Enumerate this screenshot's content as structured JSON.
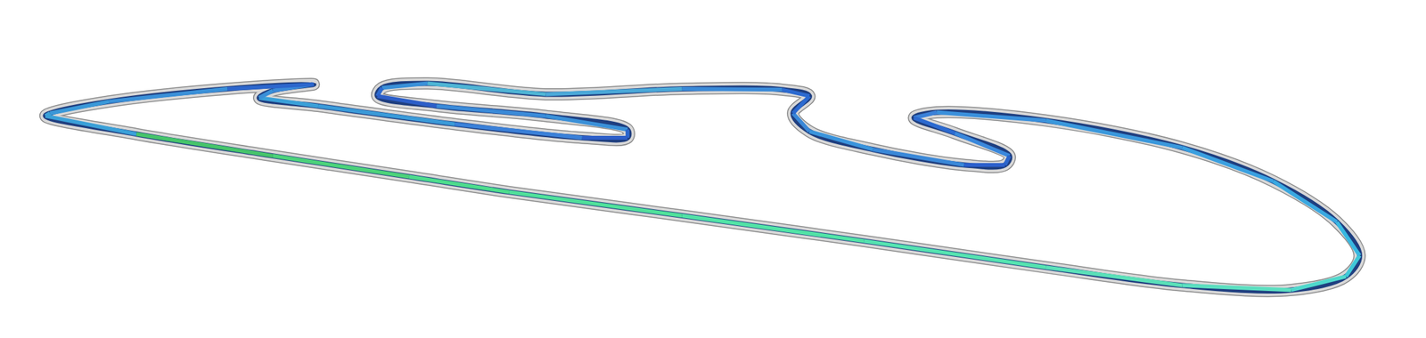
{
  "chart_data": {
    "type": "line",
    "x": [
      50,
      150,
      300,
      450,
      560,
      750,
      950,
      1150,
      1300,
      1420,
      1480,
      1495,
      1470,
      1400,
      1300,
      1150,
      1030,
      1005,
      1050,
      1110,
      1105,
      1060,
      960,
      890,
      872,
      890,
      860,
      750,
      600,
      470,
      420,
      415,
      480,
      600,
      690,
      690,
      640,
      500,
      350,
      285,
      300,
      345,
      250,
      120,
      55
    ],
    "y": [
      128,
      148,
      172,
      195,
      212,
      238,
      266,
      295,
      315,
      320,
      305,
      282,
      245,
      200,
      163,
      133,
      124,
      130,
      147,
      172,
      182,
      182,
      165,
      145,
      125,
      106,
      99,
      98,
      104,
      92,
      97,
      106,
      117,
      128,
      143,
      152,
      152,
      137,
      117,
      108,
      100,
      93,
      98,
      112,
      125
    ],
    "colors": [
      "#3aa0d8",
      "#46c46a",
      "#4cd27a",
      "#4ddc8c",
      "#50e09a",
      "#52e3a6",
      "#55e3b0",
      "#5ae0b8",
      "#5bdfc0",
      "#4fd8cc",
      "#40c8d8",
      "#38b8e0",
      "#3aa8e0",
      "#3aa0e0",
      "#3a98dc",
      "#3a90dc",
      "#3a80d8",
      "#2c6ad0",
      "#3a88dc",
      "#2c66cc",
      "#2c60cc",
      "#3a88d8",
      "#3a94dc",
      "#3a88d8",
      "#2c6ad0",
      "#2c6ad0",
      "#3a8ad8",
      "#4aa8d8",
      "#4eb4d4",
      "#3a90d8",
      "#2c6ad0",
      "#2c5ec8",
      "#3a8ad8",
      "#3a90d8",
      "#2c66cc",
      "#2c5ec8",
      "#3a80d8",
      "#3a9ad8",
      "#3aa0d8",
      "#3a90d8",
      "#3a88d8",
      "#2c66cc",
      "#3a90d8",
      "#3a98d8",
      "#3aa0d8"
    ],
    "color": "#d8d8d8",
    "xlim": [
      0,
      1568
    ],
    "ylim": [
      373,
      0
    ],
    "xticks": [],
    "yticks": [],
    "tick_labels": false,
    "grid": false
  }
}
